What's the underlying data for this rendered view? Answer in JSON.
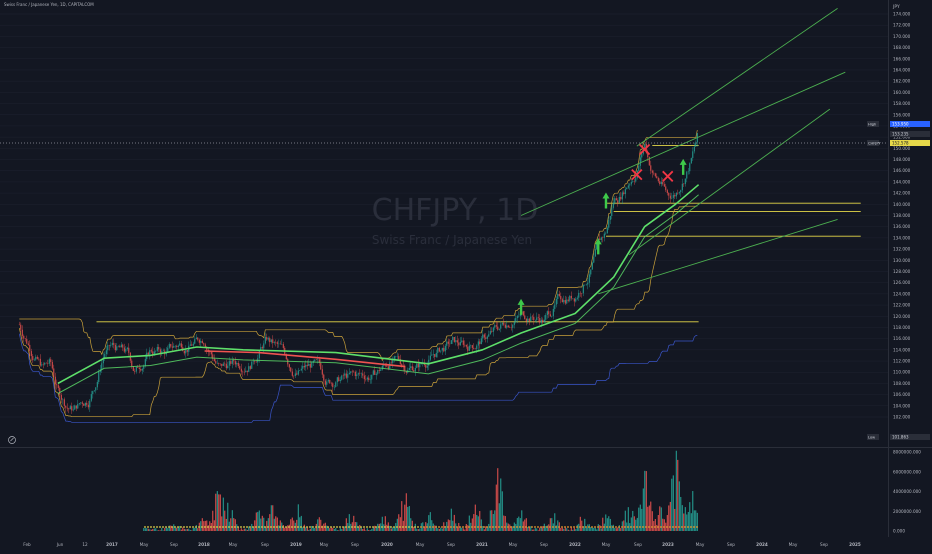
{
  "header": {
    "title": "Swiss Franc / Japanese Yen, 1D, CAPITALCOM"
  },
  "watermark": {
    "symbol": "CHFJPY, 1D",
    "name": "Swiss Franc / Japanese Yen"
  },
  "colors": {
    "background": "#131722",
    "axis_text": "#b2b5be",
    "grid": "#1e2230",
    "candle_up": "#26a69a",
    "candle_down": "#ef5350",
    "trendline": "#4caf50",
    "level": "#e6d84a",
    "channel_upper": "#c9a13a",
    "channel_lower": "#3a55c9",
    "ma_green": "#5ee06a",
    "ma_red": "#ef5350",
    "cross": "#f23645",
    "arrow": "#3ec94a",
    "price_tag": "#e6d84a"
  },
  "price_axis": {
    "currency": "JPY",
    "ticks": [
      "174.000",
      "172.000",
      "170.000",
      "168.000",
      "166.000",
      "164.000",
      "162.000",
      "160.000",
      "158.000",
      "156.000",
      "154.000",
      "152.000",
      "150.000",
      "148.000",
      "146.000",
      "144.000",
      "142.000",
      "140.000",
      "138.000",
      "136.000",
      "134.000",
      "132.000",
      "130.000",
      "128.000",
      "126.000",
      "124.000",
      "122.000",
      "120.000",
      "118.000",
      "116.000",
      "114.000",
      "112.000",
      "110.000",
      "108.000",
      "106.000",
      "104.000",
      "102.000"
    ],
    "high_label": "High",
    "high_value": "153.950",
    "tag_a_label": "",
    "tag_a_value": "153.235",
    "current_label": "CHFJPY",
    "current_value": "152.578",
    "low_label": "Low",
    "low_value": "101.863"
  },
  "volume_axis": {
    "ticks": [
      "8000000.000",
      "6000000.000",
      "4000000.000",
      "2000000.000",
      "0.000"
    ]
  },
  "time_axis": {
    "labels": [
      "Feb",
      "Jun",
      "12",
      "2017",
      "May",
      "Sep",
      "2018",
      "May",
      "Sep",
      "2019",
      "May",
      "Sep",
      "2020",
      "May",
      "Sep",
      "2021",
      "May",
      "Sep",
      "2022",
      "May",
      "Sep",
      "2023",
      "May",
      "Sep",
      "2024",
      "May",
      "Sep",
      "2025"
    ]
  },
  "chart_data": {
    "type": "candlestick",
    "title": "CHFJPY, 1D",
    "subtitle": "Swiss Franc / Japanese Yen",
    "ylabel": "JPY",
    "ylim": [
      101,
      175
    ],
    "volume_ylim": [
      0,
      8000000
    ],
    "x_range": [
      "2016-01",
      "2025-03"
    ],
    "price_path": [
      {
        "d": "2016-01",
        "p": 118.5
      },
      {
        "d": "2016-02",
        "p": 116.0
      },
      {
        "d": "2016-03",
        "p": 113.5
      },
      {
        "d": "2016-04",
        "p": 111.0
      },
      {
        "d": "2016-05",
        "p": 111.5
      },
      {
        "d": "2016-06",
        "p": 106.5
      },
      {
        "d": "2016-07",
        "p": 104.5
      },
      {
        "d": "2016-08",
        "p": 103.5
      },
      {
        "d": "2016-09",
        "p": 104.5
      },
      {
        "d": "2016-10",
        "p": 105.5
      },
      {
        "d": "2016-11",
        "p": 109.0
      },
      {
        "d": "2016-12",
        "p": 114.0
      },
      {
        "d": "2017-01",
        "p": 114.5
      },
      {
        "d": "2017-03",
        "p": 113.0
      },
      {
        "d": "2017-04",
        "p": 110.0
      },
      {
        "d": "2017-06",
        "p": 114.0
      },
      {
        "d": "2017-08",
        "p": 113.5
      },
      {
        "d": "2017-10",
        "p": 115.0
      },
      {
        "d": "2017-12",
        "p": 115.5
      },
      {
        "d": "2018-01",
        "p": 116.5
      },
      {
        "d": "2018-03",
        "p": 111.0
      },
      {
        "d": "2018-05",
        "p": 111.5
      },
      {
        "d": "2018-07",
        "p": 112.5
      },
      {
        "d": "2018-09",
        "p": 116.0
      },
      {
        "d": "2018-11",
        "p": 113.5
      },
      {
        "d": "2018-12",
        "p": 111.5
      },
      {
        "d": "2019-01",
        "p": 110.0
      },
      {
        "d": "2019-03",
        "p": 111.0
      },
      {
        "d": "2019-05",
        "p": 108.5
      },
      {
        "d": "2019-07",
        "p": 109.0
      },
      {
        "d": "2019-09",
        "p": 109.0
      },
      {
        "d": "2019-11",
        "p": 109.5
      },
      {
        "d": "2020-01",
        "p": 112.0
      },
      {
        "d": "2020-03",
        "p": 111.0
      },
      {
        "d": "2020-05",
        "p": 111.5
      },
      {
        "d": "2020-07",
        "p": 113.5
      },
      {
        "d": "2020-09",
        "p": 115.0
      },
      {
        "d": "2020-11",
        "p": 114.5
      },
      {
        "d": "2021-01",
        "p": 116.0
      },
      {
        "d": "2021-03",
        "p": 117.5
      },
      {
        "d": "2021-05",
        "p": 120.0
      },
      {
        "d": "2021-07",
        "p": 120.5
      },
      {
        "d": "2021-09",
        "p": 119.5
      },
      {
        "d": "2021-11",
        "p": 123.0
      },
      {
        "d": "2022-01",
        "p": 124.0
      },
      {
        "d": "2022-03",
        "p": 128.5
      },
      {
        "d": "2022-04",
        "p": 132.0
      },
      {
        "d": "2022-05",
        "p": 134.5
      },
      {
        "d": "2022-06",
        "p": 140.5
      },
      {
        "d": "2022-07",
        "p": 142.0
      },
      {
        "d": "2022-08",
        "p": 144.5
      },
      {
        "d": "2022-09",
        "p": 146.5
      },
      {
        "d": "2022-10",
        "p": 151.0
      },
      {
        "d": "2022-11",
        "p": 146.0
      },
      {
        "d": "2022-12",
        "p": 144.0
      },
      {
        "d": "2023-01",
        "p": 141.5
      },
      {
        "d": "2023-02",
        "p": 142.0
      },
      {
        "d": "2023-03",
        "p": 145.0
      },
      {
        "d": "2023-04",
        "p": 148.0
      },
      {
        "d": "2023-05",
        "p": 152.6
      }
    ],
    "moving_averages": [
      {
        "color": "green",
        "points": [
          {
            "d": "2016-06",
            "p": 108.0
          },
          {
            "d": "2016-12",
            "p": 112.5
          },
          {
            "d": "2017-06",
            "p": 113.0
          },
          {
            "d": "2017-12",
            "p": 114.5
          },
          {
            "d": "2018-06",
            "p": 114.0
          },
          {
            "d": "2019-06",
            "p": 113.5
          },
          {
            "d": "2020-06",
            "p": 111.5
          },
          {
            "d": "2021-01",
            "p": 114.0
          },
          {
            "d": "2021-06",
            "p": 117.0
          },
          {
            "d": "2022-01",
            "p": 120.5
          },
          {
            "d": "2022-06",
            "p": 127.0
          },
          {
            "d": "2022-10",
            "p": 136.0
          },
          {
            "d": "2023-02",
            "p": 140.0
          },
          {
            "d": "2023-05",
            "p": 143.5
          }
        ]
      },
      {
        "color": "red",
        "points": [
          {
            "d": "2018-01",
            "p": 113.8
          },
          {
            "d": "2018-08",
            "p": 113.5
          },
          {
            "d": "2019-06",
            "p": 112.3
          },
          {
            "d": "2020-03",
            "p": 111.0
          }
        ]
      }
    ],
    "volume": {
      "series": [
        {
          "d": "2016-07",
          "v": 200000
        },
        {
          "d": "2017-05",
          "v": 350000
        },
        {
          "d": "2017-09",
          "v": 500000
        },
        {
          "d": "2018-01",
          "v": 1500000
        },
        {
          "d": "2018-03",
          "v": 4800000
        },
        {
          "d": "2018-04",
          "v": 3200000
        },
        {
          "d": "2018-08",
          "v": 1800000
        },
        {
          "d": "2018-10",
          "v": 2500000
        },
        {
          "d": "2019-01",
          "v": 2200000
        },
        {
          "d": "2019-04",
          "v": 1300000
        },
        {
          "d": "2019-08",
          "v": 2000000
        },
        {
          "d": "2019-12",
          "v": 1600000
        },
        {
          "d": "2020-03",
          "v": 3600000
        },
        {
          "d": "2020-06",
          "v": 2000000
        },
        {
          "d": "2020-09",
          "v": 2200000
        },
        {
          "d": "2020-12",
          "v": 2800000
        },
        {
          "d": "2021-03",
          "v": 6000000
        },
        {
          "d": "2021-06",
          "v": 2000000
        },
        {
          "d": "2021-10",
          "v": 1800000
        },
        {
          "d": "2022-02",
          "v": 1200000
        },
        {
          "d": "2022-05",
          "v": 1600000
        },
        {
          "d": "2022-08",
          "v": 2200000
        },
        {
          "d": "2022-10",
          "v": 5600000
        },
        {
          "d": "2022-12",
          "v": 2500000
        },
        {
          "d": "2023-02",
          "v": 7600000
        },
        {
          "d": "2023-04",
          "v": 4000000
        }
      ]
    },
    "annotations": {
      "levels": [
        {
          "from": "2016-11",
          "to": "2023-05",
          "p": 119.0
        },
        {
          "from": "2022-05",
          "to": "2025-02",
          "p": 140.2
        },
        {
          "from": "2022-06",
          "to": "2025-02",
          "p": 138.7
        },
        {
          "from": "2022-05",
          "to": "2025-02",
          "p": 134.3
        },
        {
          "from": "2022-11",
          "to": "2023-05",
          "p": 150.5
        }
      ],
      "trendlines": [
        {
          "from": {
            "d": "2021-06",
            "p": 138.0
          },
          "to": {
            "d": "2024-12",
            "p": 163.6
          }
        },
        {
          "from": {
            "d": "2022-09",
            "p": 150.4
          },
          "to": {
            "d": "2024-11",
            "p": 175.0
          }
        },
        {
          "from": {
            "d": "2022-08",
            "p": 131.0
          },
          "to": {
            "d": "2024-10",
            "p": 157.0
          }
        },
        {
          "from": {
            "d": "2022-04",
            "p": 124.0
          },
          "to": {
            "d": "2024-11",
            "p": 137.3
          }
        }
      ],
      "crosses": [
        {
          "d": "2022-10",
          "p": 149.8
        },
        {
          "d": "2022-09",
          "p": 145.3
        },
        {
          "d": "2023-01",
          "p": 145.0
        }
      ],
      "arrows": [
        {
          "d": "2021-06",
          "p": 121.5
        },
        {
          "d": "2022-04",
          "p": 132.3
        },
        {
          "d": "2022-05",
          "p": 140.5
        },
        {
          "d": "2023-03",
          "p": 146.5
        }
      ]
    }
  }
}
